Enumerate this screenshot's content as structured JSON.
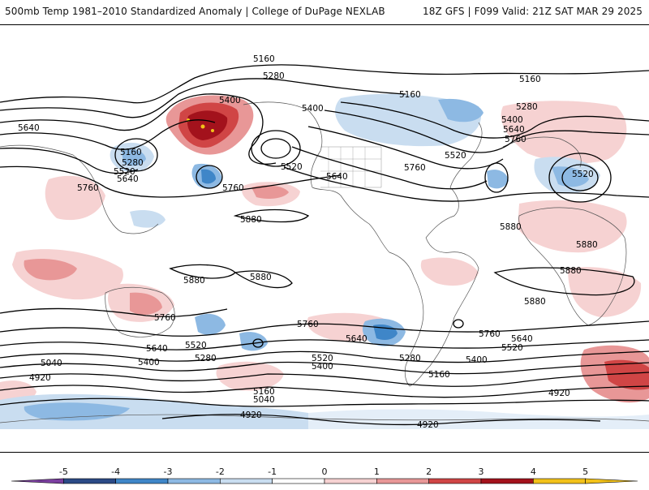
{
  "header": {
    "title_left": "500mb Temp 1981–2010 Standardized Anomaly | College of DuPage NEXLAB",
    "title_right": "18Z GFS | F099 Valid: 21Z SAT MAR 29 2025"
  },
  "colorbar": {
    "ticks": [
      "-5",
      "-4",
      "-3",
      "-2",
      "-1",
      "0",
      "1",
      "2",
      "3",
      "4",
      "5"
    ],
    "colors": [
      "#7b3fa0",
      "#2b4a86",
      "#3f86c8",
      "#8db9e3",
      "#c9ddf0",
      "#ffffff",
      "#f6d2d2",
      "#e89797",
      "#d04545",
      "#a3121c",
      "#f2c21a"
    ]
  },
  "contour_labels": [
    "5160",
    "5280",
    "5160",
    "5400",
    "5400",
    "5160",
    "5280",
    "5400",
    "5640",
    "5640",
    "5760",
    "5160",
    "5280",
    "5520",
    "5640",
    "5520",
    "5640",
    "5760",
    "5520",
    "5520",
    "5760",
    "5760",
    "5880",
    "5880",
    "5880",
    "5880",
    "5880",
    "5880",
    "5880",
    "5760",
    "5760",
    "5640",
    "5760",
    "5640",
    "5640",
    "5520",
    "5520",
    "5280",
    "5400",
    "5520",
    "5400",
    "5400",
    "5280",
    "5040",
    "5160",
    "5160",
    "5040",
    "4920",
    "4920",
    "4920",
    "4920"
  ]
}
